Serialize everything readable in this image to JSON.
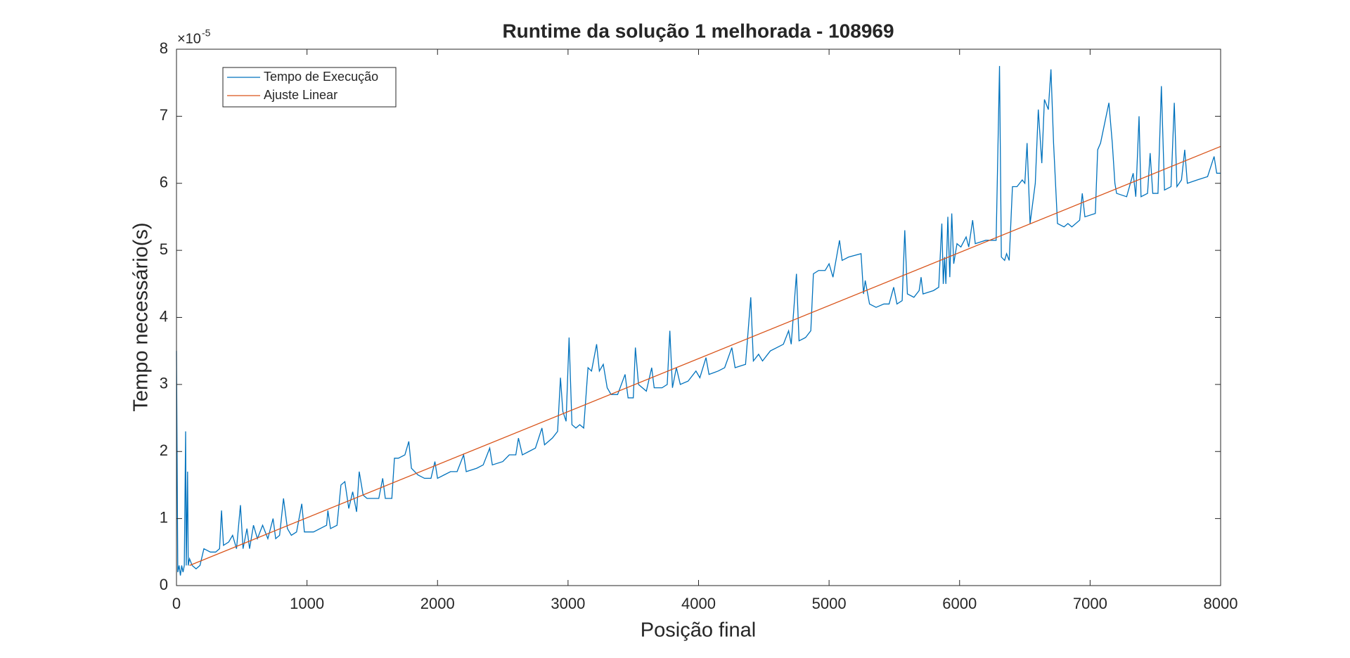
{
  "chart_data": {
    "type": "line",
    "title": "Runtime da solução 1 melhorada - 108969",
    "x_label": "Posição final",
    "y_label": "Tempo necessário(s)",
    "y_multiplier": {
      "base": "×10",
      "exponent": "-5"
    },
    "xlim": [
      0,
      8000
    ],
    "xticks": [
      0,
      1000,
      2000,
      3000,
      4000,
      5000,
      6000,
      7000,
      8000
    ],
    "ylim": [
      0,
      8
    ],
    "yticks": [
      0,
      1,
      2,
      3,
      4,
      5,
      6,
      7,
      8
    ],
    "grid": false,
    "legend_position": "northwest",
    "series": [
      {
        "name": "Tempo de Execução",
        "color": "#0072BD",
        "x": [
          0,
          10,
          20,
          30,
          40,
          50,
          60,
          70,
          75,
          85,
          90,
          100,
          120,
          150,
          180,
          210,
          260,
          300,
          330,
          345,
          360,
          400,
          430,
          460,
          490,
          510,
          540,
          560,
          590,
          620,
          660,
          700,
          740,
          760,
          790,
          820,
          850,
          880,
          920,
          960,
          980,
          1050,
          1100,
          1150,
          1160,
          1180,
          1230,
          1260,
          1290,
          1320,
          1350,
          1380,
          1400,
          1430,
          1460,
          1550,
          1580,
          1600,
          1650,
          1670,
          1700,
          1750,
          1780,
          1800,
          1850,
          1900,
          1950,
          1980,
          2000,
          2050,
          2100,
          2150,
          2200,
          2220,
          2300,
          2350,
          2400,
          2420,
          2500,
          2550,
          2600,
          2620,
          2650,
          2700,
          2750,
          2800,
          2820,
          2880,
          2920,
          2942,
          2960,
          2985,
          3008,
          3030,
          3060,
          3090,
          3120,
          3153,
          3180,
          3219,
          3240,
          3270,
          3300,
          3330,
          3380,
          3437,
          3460,
          3500,
          3516,
          3540,
          3600,
          3641,
          3660,
          3720,
          3760,
          3780,
          3800,
          3830,
          3860,
          3920,
          3980,
          4010,
          4057,
          4080,
          4150,
          4200,
          4255,
          4280,
          4360,
          4400,
          4420,
          4460,
          4490,
          4550,
          4600,
          4650,
          4690,
          4710,
          4750,
          4770,
          4820,
          4860,
          4880,
          4920,
          4970,
          5000,
          5030,
          5080,
          5100,
          5150,
          5245,
          5264,
          5277,
          5310,
          5360,
          5420,
          5460,
          5495,
          5520,
          5560,
          5580,
          5600,
          5650,
          5690,
          5705,
          5720,
          5800,
          5840,
          5864,
          5875,
          5885,
          5895,
          5910,
          5925,
          5940,
          5955,
          5980,
          6010,
          6050,
          6070,
          6100,
          6120,
          6200,
          6280,
          6306,
          6320,
          6345,
          6360,
          6380,
          6405,
          6440,
          6480,
          6500,
          6517,
          6540,
          6580,
          6603,
          6630,
          6650,
          6680,
          6700,
          6720,
          6750,
          6800,
          6830,
          6860,
          6920,
          6940,
          6960,
          7040,
          7058,
          7080,
          7144,
          7170,
          7190,
          7203,
          7280,
          7330,
          7350,
          7375,
          7390,
          7440,
          7460,
          7480,
          7520,
          7546,
          7570,
          7620,
          7645,
          7665,
          7700,
          7725,
          7745,
          7820,
          7900,
          7950,
          7970,
          8000
        ],
        "values": [
          3.5,
          0.2,
          0.3,
          0.15,
          0.3,
          0.2,
          0.3,
          2.3,
          0.3,
          1.7,
          0.3,
          0.4,
          0.3,
          0.25,
          0.3,
          0.55,
          0.5,
          0.5,
          0.55,
          1.12,
          0.6,
          0.65,
          0.75,
          0.55,
          1.2,
          0.55,
          0.85,
          0.55,
          0.9,
          0.7,
          0.9,
          0.7,
          1.0,
          0.7,
          0.75,
          1.3,
          0.85,
          0.75,
          0.8,
          1.22,
          0.8,
          0.8,
          0.85,
          0.9,
          1.12,
          0.85,
          0.9,
          1.5,
          1.55,
          1.15,
          1.4,
          1.1,
          1.7,
          1.35,
          1.3,
          1.3,
          1.6,
          1.3,
          1.3,
          1.9,
          1.9,
          1.95,
          2.15,
          1.75,
          1.65,
          1.6,
          1.6,
          1.85,
          1.6,
          1.65,
          1.7,
          1.7,
          1.95,
          1.7,
          1.75,
          1.8,
          2.05,
          1.8,
          1.85,
          1.95,
          1.95,
          2.2,
          1.95,
          2.0,
          2.05,
          2.35,
          2.1,
          2.2,
          2.3,
          3.1,
          2.6,
          2.45,
          3.7,
          2.4,
          2.35,
          2.4,
          2.35,
          3.25,
          3.2,
          3.6,
          3.2,
          3.3,
          2.95,
          2.85,
          2.85,
          3.15,
          2.8,
          2.8,
          3.55,
          3.0,
          2.9,
          3.25,
          2.95,
          2.95,
          3.0,
          3.8,
          2.95,
          3.25,
          3.0,
          3.05,
          3.2,
          3.1,
          3.4,
          3.15,
          3.2,
          3.25,
          3.55,
          3.25,
          3.3,
          4.3,
          3.35,
          3.45,
          3.35,
          3.5,
          3.55,
          3.6,
          3.8,
          3.6,
          4.65,
          3.65,
          3.7,
          3.8,
          4.65,
          4.7,
          4.7,
          4.8,
          4.6,
          5.15,
          4.85,
          4.9,
          4.95,
          4.35,
          4.55,
          4.2,
          4.15,
          4.2,
          4.2,
          4.45,
          4.2,
          4.25,
          5.3,
          4.35,
          4.3,
          4.4,
          4.6,
          4.35,
          4.4,
          4.45,
          5.4,
          4.5,
          4.9,
          4.5,
          5.5,
          4.6,
          5.55,
          4.8,
          5.1,
          5.05,
          5.2,
          5.05,
          5.45,
          5.1,
          5.15,
          5.15,
          7.75,
          4.9,
          4.85,
          4.95,
          4.85,
          5.95,
          5.95,
          6.05,
          6.0,
          6.6,
          5.4,
          6.0,
          7.1,
          6.3,
          7.25,
          7.1,
          7.7,
          6.6,
          5.4,
          5.35,
          5.4,
          5.35,
          5.45,
          5.85,
          5.5,
          5.55,
          6.5,
          6.6,
          7.2,
          6.6,
          6.0,
          5.85,
          5.8,
          6.15,
          5.8,
          7.0,
          5.8,
          5.85,
          6.45,
          5.85,
          5.85,
          7.45,
          5.9,
          5.95,
          7.2,
          5.95,
          6.05,
          6.5,
          6.0,
          6.05,
          6.1,
          6.4,
          6.15,
          6.15
        ]
      },
      {
        "name": "Ajuste Linear",
        "color": "#D95319",
        "x": [
          100,
          8000
        ],
        "values": [
          0.3,
          6.55
        ]
      }
    ]
  }
}
